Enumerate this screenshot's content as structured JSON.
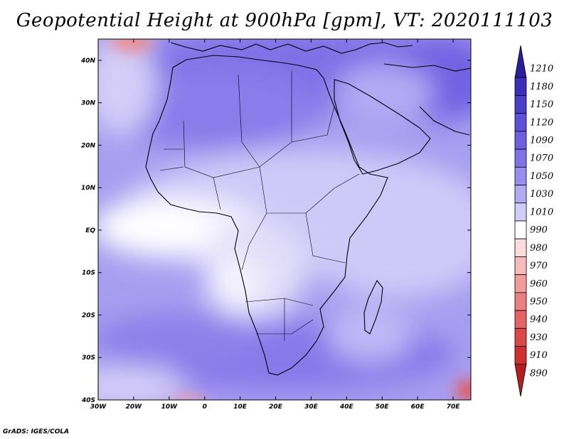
{
  "title": "Geopotential Height at 900hPa [gpm], VT: 2020111103",
  "credit": "GrADS: IGES/COLA",
  "map": {
    "lon_range": [
      -30,
      75
    ],
    "lat_range": [
      -40,
      45
    ],
    "lon_ticks": [
      "30W",
      "20W",
      "10W",
      "0",
      "10E",
      "20E",
      "30E",
      "40E",
      "50E",
      "60E",
      "70E"
    ],
    "lat_ticks": [
      "40N",
      "30N",
      "20N",
      "10N",
      "EQ",
      "10S",
      "20S",
      "30S",
      "40S"
    ]
  },
  "colorbar": {
    "levels": [
      "1210",
      "1180",
      "1150",
      "1120",
      "1090",
      "1070",
      "1050",
      "1030",
      "1010",
      "990",
      "980",
      "970",
      "960",
      "950",
      "940",
      "930",
      "910",
      "890"
    ],
    "colors": [
      "#2a1e9c",
      "#3c2eb8",
      "#4c3ecc",
      "#5e50d8",
      "#7060e0",
      "#8272e8",
      "#9a8cf0",
      "#b4aaf4",
      "#d2ccf8",
      "#ffffff",
      "#fbdcdc",
      "#f6bcbc",
      "#f29c9c",
      "#ec8080",
      "#e46464",
      "#dc4848",
      "#cc3030",
      "#b41e1e"
    ]
  }
}
